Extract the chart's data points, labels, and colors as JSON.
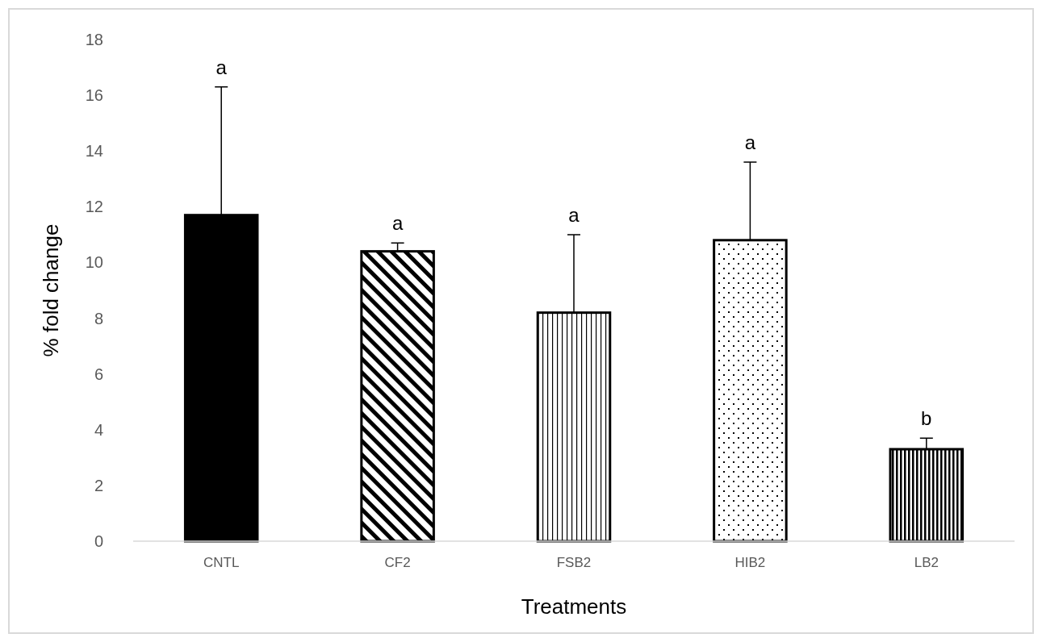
{
  "chart_data": {
    "type": "bar",
    "xlabel": "Treatments",
    "ylabel": "% fold change",
    "categories": [
      "CNTL",
      "CF2",
      "FSB2",
      "HIB2",
      "LB2"
    ],
    "values": [
      11.7,
      10.4,
      8.2,
      10.8,
      3.3
    ],
    "errors": [
      [
        11.7,
        16.3
      ],
      [
        10.4,
        10.7
      ],
      [
        8.2,
        11.0
      ],
      [
        10.8,
        13.6
      ],
      [
        3.3,
        3.7
      ]
    ],
    "colors": [
      "#000000",
      "#000000",
      "#000000",
      "#000000",
      "#000000"
    ],
    "ylim": [
      0,
      18
    ],
    "yticks": [
      0,
      2,
      4,
      6,
      8,
      10,
      12,
      14,
      16,
      18
    ],
    "grid": false,
    "annotations": [
      "a",
      "a",
      "a",
      "a",
      "b"
    ]
  }
}
